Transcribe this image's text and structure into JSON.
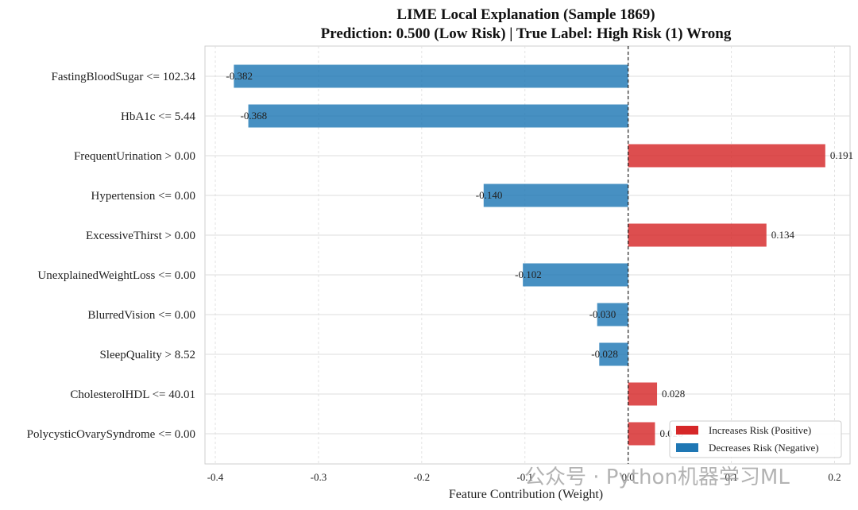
{
  "chart_data": {
    "type": "bar",
    "orientation": "horizontal",
    "title": "LIME Local Explanation (Sample 1869)",
    "subtitle": "Prediction: 0.500 (Low Risk) | True Label: High Risk (1) Wrong",
    "xlabel": "Feature Contribution (Weight)",
    "ylabel": "",
    "xlim": [
      -0.41,
      0.215
    ],
    "xticks": [
      -0.4,
      -0.3,
      -0.2,
      -0.1,
      0.0,
      0.1,
      0.2
    ],
    "xtick_labels": [
      "-0.4",
      "-0.3",
      "-0.2",
      "-0.1",
      "0.0",
      "0.1",
      "0.2"
    ],
    "grid": true,
    "zero_line": "dashed",
    "categories": [
      "FastingBloodSugar <= 102.34",
      "HbA1c <= 5.44",
      "FrequentUrination > 0.00",
      "Hypertension <= 0.00",
      "ExcessiveThirst > 0.00",
      "UnexplainedWeightLoss <= 0.00",
      "BlurredVision <= 0.00",
      "SleepQuality > 8.52",
      "CholesterolHDL <= 40.01",
      "PolycysticOvarySyndrome <= 0.00"
    ],
    "values": [
      -0.382,
      -0.368,
      0.191,
      -0.14,
      0.134,
      -0.102,
      -0.03,
      -0.028,
      0.028,
      0.026
    ],
    "value_labels": [
      "-0.382",
      "-0.368",
      "0.191",
      "-0.140",
      "0.134",
      "-0.102",
      "-0.030",
      "-0.028",
      "0.028",
      "0.026"
    ],
    "colors": {
      "positive": "#d62728",
      "negative": "#1f77b4"
    },
    "legend": {
      "placement": "bottom-right",
      "entries": [
        {
          "label": "Increases Risk (Positive)",
          "color": "#d62728"
        },
        {
          "label": "Decreases Risk (Negative)",
          "color": "#1f77b4"
        }
      ]
    }
  },
  "watermark": "公众号 · Python机器学习ML"
}
